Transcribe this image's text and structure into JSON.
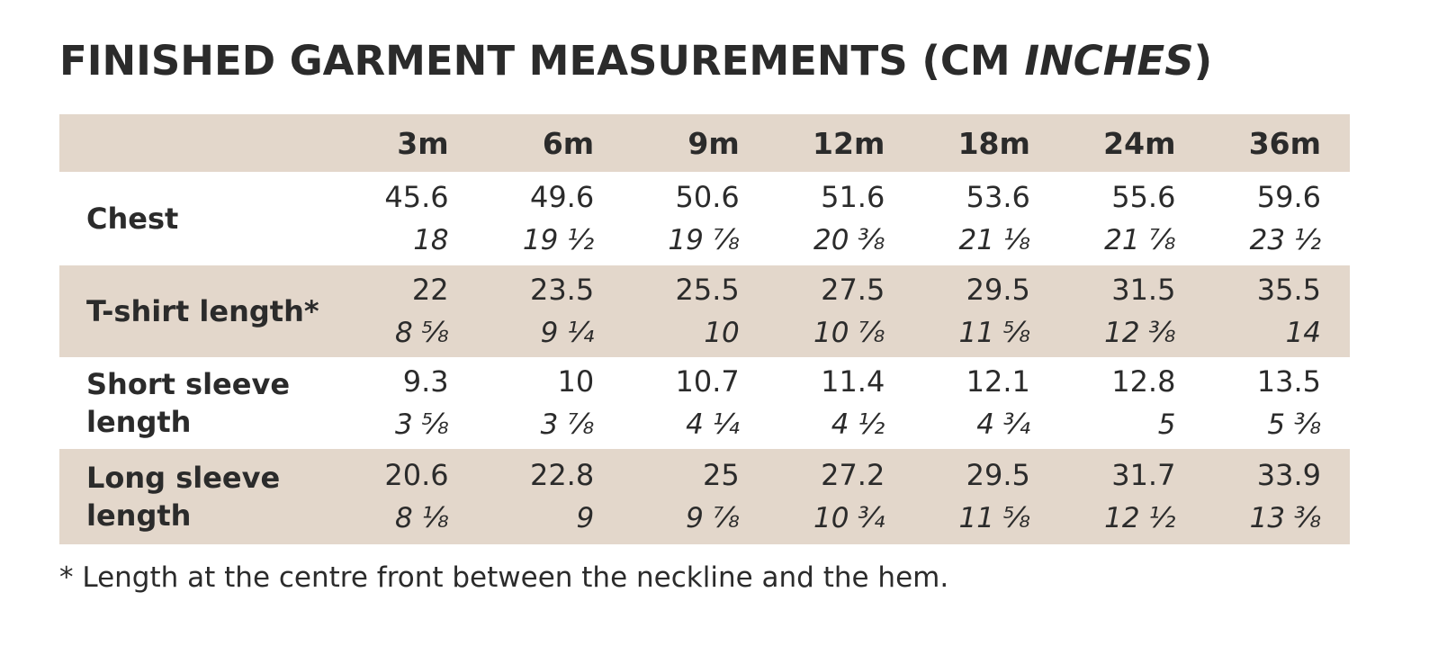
{
  "title": {
    "main": "FINISHED GARMENT MEASUREMENTS (CM ",
    "italic": "INCHES",
    "close": ")"
  },
  "table": {
    "sizes": [
      "3m",
      "6m",
      "9m",
      "12m",
      "18m",
      "24m",
      "36m"
    ],
    "rows": [
      {
        "label": "Chest",
        "cm": [
          "45.6",
          "49.6",
          "50.6",
          "51.6",
          "53.6",
          "55.6",
          "59.6"
        ],
        "inches": [
          "18",
          "19 ½",
          "19 ⅞",
          "20 ⅜",
          "21 ⅛",
          "21 ⅞",
          "23 ½"
        ]
      },
      {
        "label": "T-shirt length*",
        "cm": [
          "22",
          "23.5",
          "25.5",
          "27.5",
          "29.5",
          "31.5",
          "35.5"
        ],
        "inches": [
          "8 ⅝",
          "9 ¼",
          "10",
          "10 ⅞",
          "11 ⅝",
          "12 ⅜",
          "14"
        ]
      },
      {
        "label": "Short sleeve length",
        "cm": [
          "9.3",
          "10",
          "10.7",
          "11.4",
          "12.1",
          "12.8",
          "13.5"
        ],
        "inches": [
          "3 ⅝",
          "3 ⅞",
          "4 ¼",
          "4 ½",
          "4 ¾",
          "5",
          "5 ⅜"
        ]
      },
      {
        "label": "Long sleeve length",
        "cm": [
          "20.6",
          "22.8",
          "25",
          "27.2",
          "29.5",
          "31.7",
          "33.9"
        ],
        "inches": [
          "8 ⅛",
          "9",
          "9 ⅞",
          "10 ¾",
          "11 ⅝",
          "12 ½",
          "13 ⅜"
        ]
      }
    ]
  },
  "footnote": "* Length at the centre front between the neckline and the hem.",
  "colors": {
    "shaded_row": "#e3d7cb",
    "text": "#2b2b2b",
    "background": "#ffffff"
  }
}
